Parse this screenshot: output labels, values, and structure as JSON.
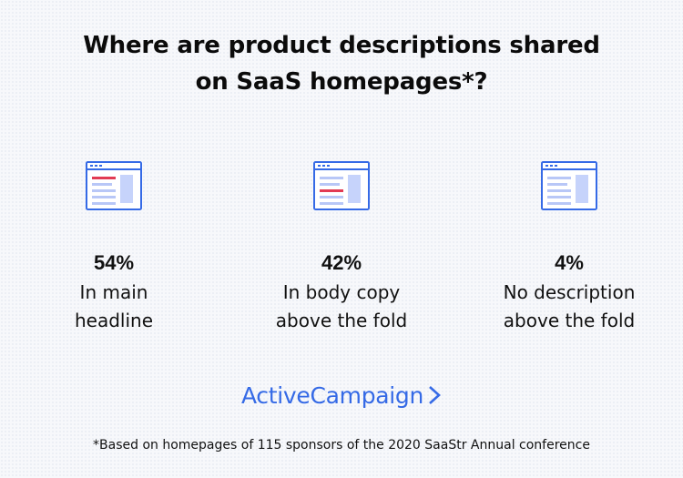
{
  "title": {
    "line1": "Where are product descriptions shared",
    "line2": "on SaaS homepages*?"
  },
  "items": [
    {
      "percent": "54%",
      "label_line1": "In main",
      "label_line2": "headline",
      "icon": "webpage-headline-highlight-icon"
    },
    {
      "percent": "42%",
      "label_line1": "In body copy",
      "label_line2": "above the fold",
      "icon": "webpage-body-highlight-icon"
    },
    {
      "percent": "4%",
      "label_line1": "No description",
      "label_line2": "above the fold",
      "icon": "webpage-plain-icon"
    }
  ],
  "logo": {
    "text": "ActiveCampaign",
    "icon": "chevron-right-icon"
  },
  "footnote": "*Based on homepages of 115 sponsors of the 2020 SaaStr Annual conference",
  "colors": {
    "icon_outline": "#356ae6",
    "icon_lines": "#b8c7f7",
    "icon_sidebar": "#c6d3fb",
    "highlight": "#e23b53",
    "logo": "#356ae6"
  }
}
